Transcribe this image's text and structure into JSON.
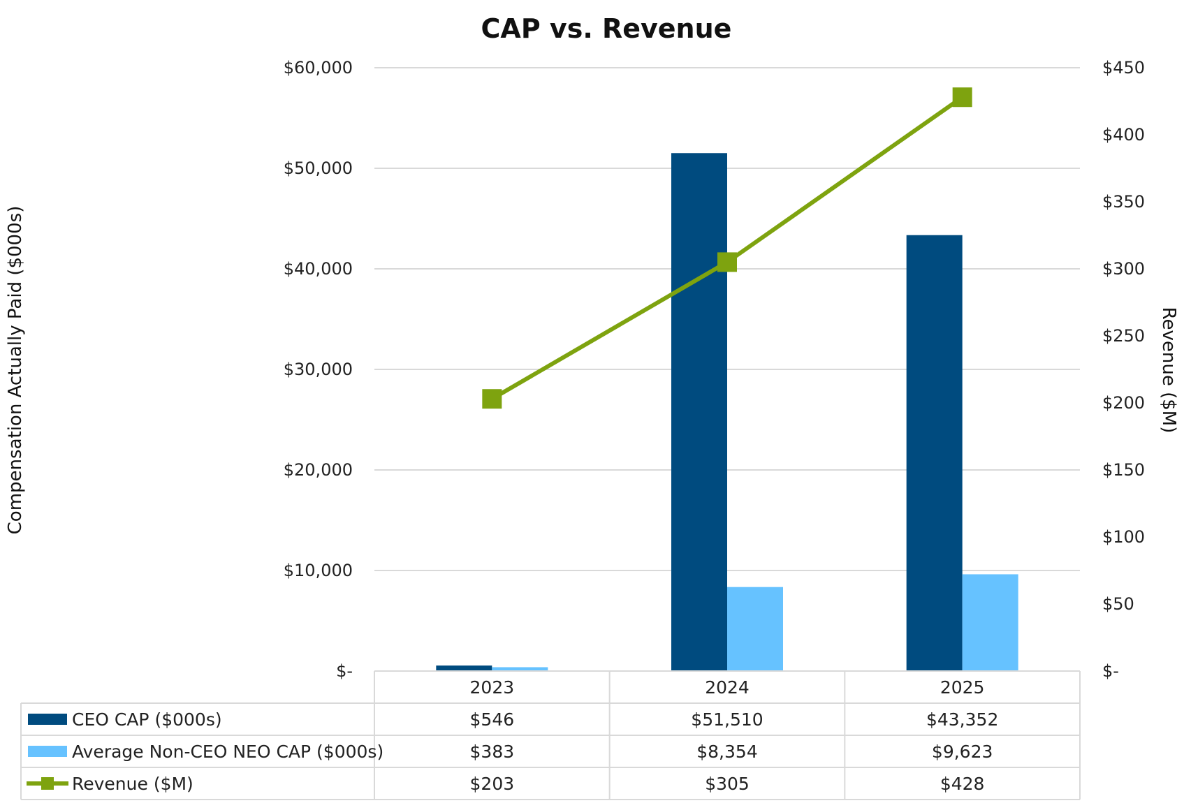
{
  "chart_data": {
    "type": "bar",
    "title": "CAP vs. Revenue",
    "categories": [
      "2023",
      "2024",
      "2025"
    ],
    "ylabel": "Compensation Actually Paid ($000s)",
    "y2label": "Revenue ($M)",
    "ylim": [
      0,
      60000
    ],
    "y2lim": [
      0,
      450
    ],
    "yticks": [
      "$-",
      "$10,000",
      "$20,000",
      "$30,000",
      "$40,000",
      "$50,000",
      "$60,000"
    ],
    "y2ticks": [
      "$-",
      "$50",
      "$100",
      "$150",
      "$200",
      "$250",
      "$300",
      "$350",
      "$400",
      "$450"
    ],
    "grid": true,
    "legend": "data table below chart",
    "series": [
      {
        "name": "CEO CAP ($000s)",
        "type": "bar",
        "axis": "left",
        "color": "#004b7f",
        "values": [
          546,
          51510,
          43352
        ],
        "labels": [
          "$546",
          "$51,510",
          "$43,352"
        ]
      },
      {
        "name": "Average Non-CEO NEO CAP ($000s)",
        "type": "bar",
        "axis": "left",
        "color": "#66c2ff",
        "values": [
          383,
          8354,
          9623
        ],
        "labels": [
          "$383",
          "$8,354",
          "$9,623"
        ]
      },
      {
        "name": "Revenue ($M)",
        "type": "line",
        "axis": "right",
        "color": "#7ea30f",
        "marker": "square",
        "values": [
          203,
          305,
          428
        ],
        "labels": [
          "$203",
          "$305",
          "$428"
        ]
      }
    ]
  }
}
